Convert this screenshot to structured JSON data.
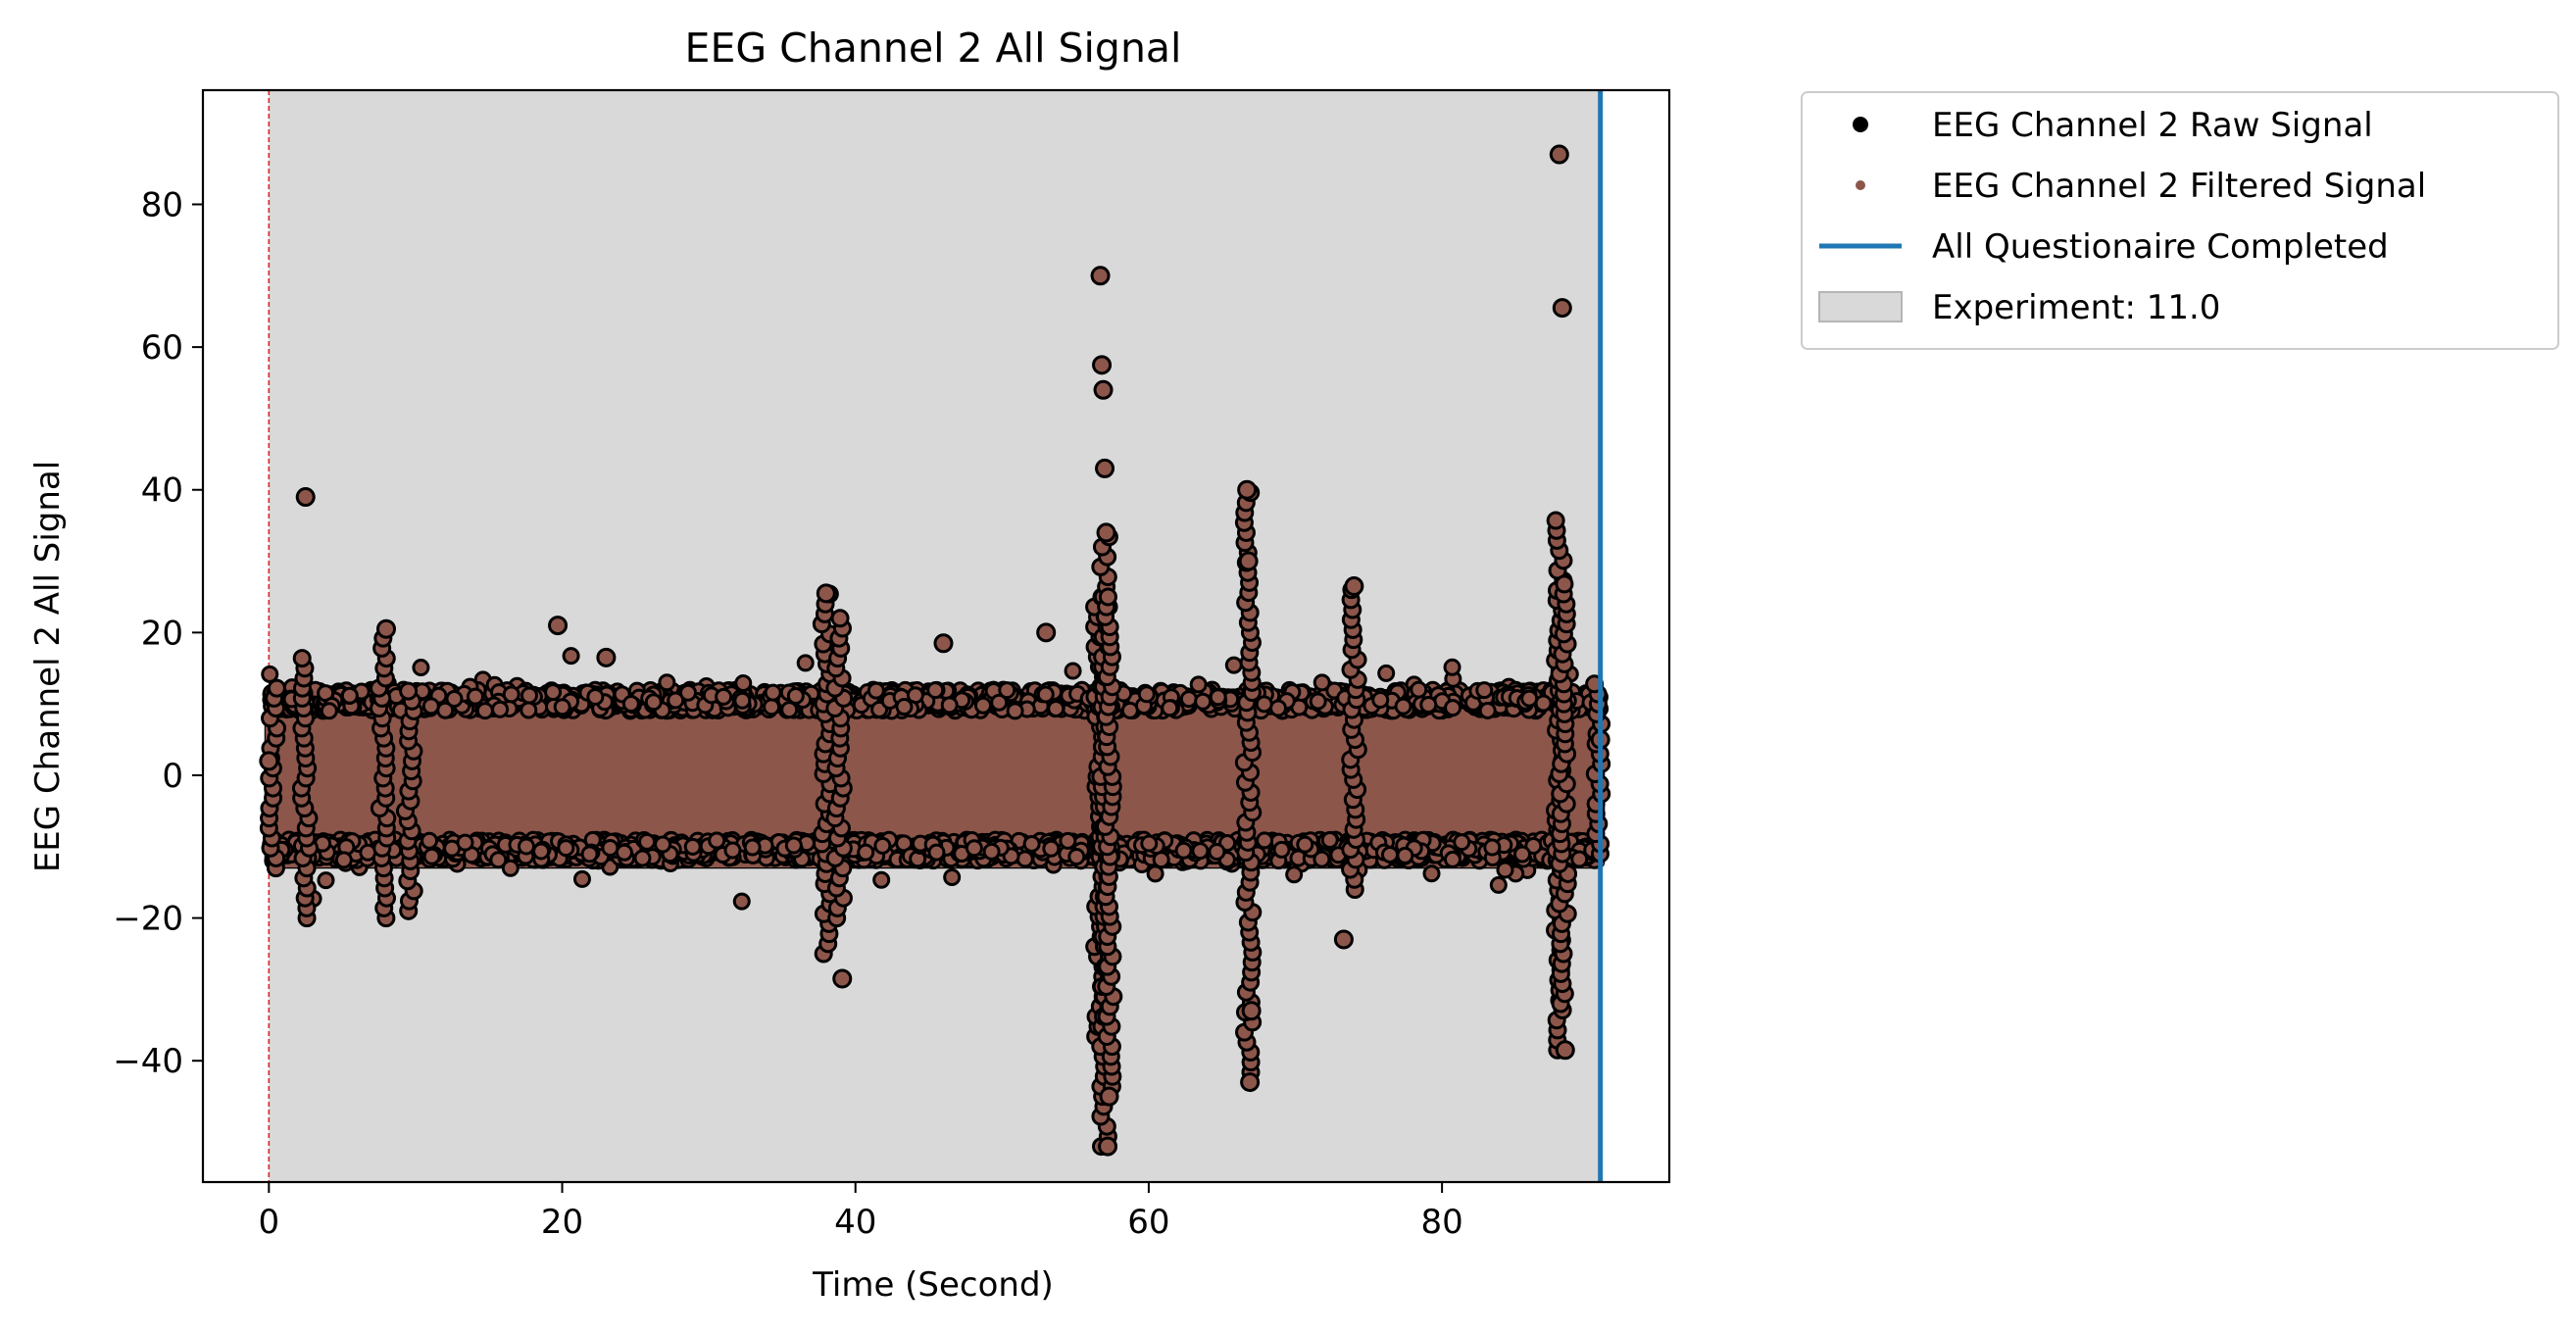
{
  "chart_data": {
    "type": "scatter",
    "title": "EEG Channel 2 All Signal",
    "xlabel": "Time (Second)",
    "ylabel": "EEG Channel 2 All Signal",
    "xlim": [
      -4.5,
      95.5
    ],
    "ylim": [
      -57,
      96
    ],
    "xticks": [
      0,
      20,
      40,
      60,
      80
    ],
    "yticks": [
      -40,
      -20,
      0,
      20,
      40,
      60,
      80
    ],
    "xtick_labels": [
      "0",
      "20",
      "40",
      "60",
      "80"
    ],
    "ytick_labels": [
      "−40",
      "−20",
      "0",
      "20",
      "40",
      "60",
      "80"
    ],
    "grid": false,
    "legend_position": "outside-top-right",
    "experiment_span": [
      0,
      90.8
    ],
    "start_marker_x": 0,
    "completed_x": 90.8,
    "baseline_band": [
      -13,
      12
    ],
    "series": [
      {
        "name": "EEG Channel 2 Raw Signal",
        "role": "raw",
        "color": "#000000",
        "x": [
          0.0,
          2.5,
          8.0,
          19.7,
          23.0,
          38.0,
          39.1,
          46.0,
          53.0,
          56.7,
          56.8,
          56.9,
          57.0,
          57.1,
          57.2,
          57.3,
          66.7,
          66.8,
          66.9,
          67.0,
          73.3,
          74.0,
          88.0,
          88.2,
          88.4,
          90.8
        ],
        "y": [
          2.0,
          39.0,
          20.5,
          21.0,
          16.5,
          25.5,
          -28.5,
          18.5,
          20.0,
          70.0,
          57.5,
          54.0,
          43.0,
          34.0,
          -52.0,
          -45.0,
          40.0,
          30.0,
          -43.0,
          -33.0,
          -23.0,
          26.5,
          87.0,
          65.5,
          -38.5,
          5.0
        ]
      },
      {
        "name": "EEG Channel 2 Filtered Signal",
        "role": "filtered",
        "color": "#8c564b",
        "x": [
          0.0,
          2.5,
          8.0,
          19.7,
          23.0,
          38.0,
          39.1,
          46.0,
          53.0,
          56.7,
          56.8,
          56.9,
          57.0,
          57.1,
          57.2,
          57.3,
          66.7,
          66.8,
          66.9,
          67.0,
          73.3,
          74.0,
          88.0,
          88.2,
          88.4,
          90.8
        ],
        "y": [
          2.0,
          39.0,
          20.5,
          21.0,
          16.5,
          25.5,
          -28.5,
          18.5,
          20.0,
          70.0,
          57.5,
          54.0,
          43.0,
          34.0,
          -52.0,
          -45.0,
          40.0,
          30.0,
          -43.0,
          -33.0,
          -23.0,
          26.5,
          87.0,
          65.5,
          -38.5,
          5.0
        ]
      }
    ],
    "legend": [
      {
        "label": "EEG Channel 2 Raw Signal",
        "kind": "marker",
        "color": "#000000"
      },
      {
        "label": "EEG Channel 2 Filtered Signal",
        "kind": "small-marker",
        "color": "#8c564b"
      },
      {
        "label": "All Questionaire Completed",
        "kind": "line",
        "color": "#1f77b4"
      },
      {
        "label": "Experiment: 11.0",
        "kind": "patch",
        "color": "#d9d9d9"
      }
    ],
    "colors": {
      "experiment_fill": "#d9d9d9",
      "completed_line": "#1f77b4",
      "start_line": "#d62728",
      "point_fill": "#8c564b",
      "point_edge": "#000000"
    }
  }
}
